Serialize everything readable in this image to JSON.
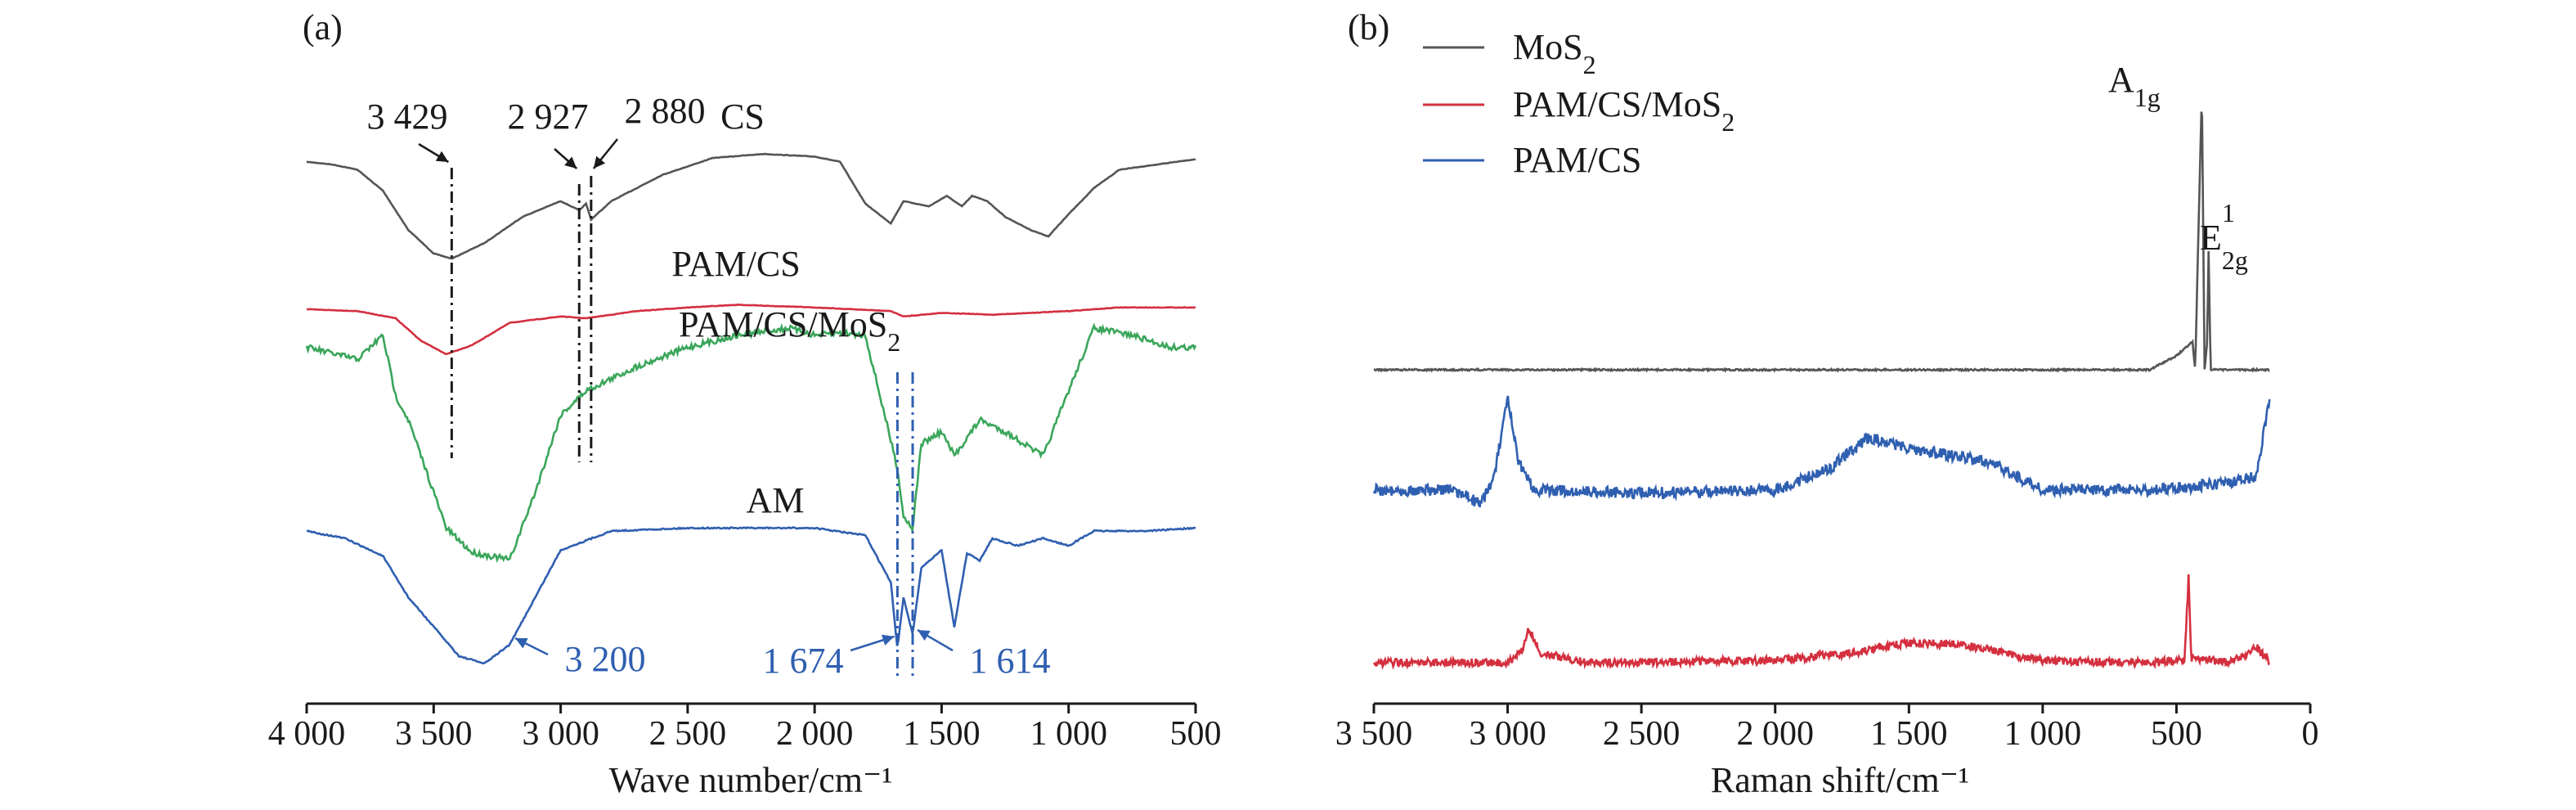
{
  "chart_data": [
    {
      "panel": "(a)",
      "type": "line",
      "xlabel": "Wave number/cm⁻¹",
      "xlim": [
        4000,
        500
      ],
      "xticks": [
        "4 000",
        "3 500",
        "3 000",
        "2 500",
        "2 000",
        "1 500",
        "1 000",
        "500"
      ],
      "xtick_values": [
        4000,
        3500,
        3000,
        2500,
        2000,
        1500,
        1000,
        500
      ],
      "series": [
        {
          "name": "CS",
          "label": "CS",
          "color": "#555555",
          "offset": 1.0,
          "points": [
            [
              4000,
              0.92
            ],
            [
              3900,
              0.9
            ],
            [
              3800,
              0.86
            ],
            [
              3700,
              0.7
            ],
            [
              3600,
              0.4
            ],
            [
              3500,
              0.22
            ],
            [
              3429,
              0.18
            ],
            [
              3300,
              0.3
            ],
            [
              3150,
              0.5
            ],
            [
              3000,
              0.62
            ],
            [
              2927,
              0.55
            ],
            [
              2900,
              0.6
            ],
            [
              2880,
              0.48
            ],
            [
              2800,
              0.62
            ],
            [
              2600,
              0.82
            ],
            [
              2400,
              0.95
            ],
            [
              2200,
              0.98
            ],
            [
              2000,
              0.96
            ],
            [
              1900,
              0.92
            ],
            [
              1800,
              0.6
            ],
            [
              1700,
              0.45
            ],
            [
              1650,
              0.62
            ],
            [
              1600,
              0.6
            ],
            [
              1550,
              0.58
            ],
            [
              1480,
              0.66
            ],
            [
              1420,
              0.58
            ],
            [
              1380,
              0.66
            ],
            [
              1320,
              0.62
            ],
            [
              1250,
              0.5
            ],
            [
              1150,
              0.4
            ],
            [
              1080,
              0.35
            ],
            [
              1000,
              0.52
            ],
            [
              900,
              0.72
            ],
            [
              800,
              0.86
            ],
            [
              650,
              0.9
            ],
            [
              500,
              0.94
            ]
          ]
        },
        {
          "name": "PAM/CS",
          "label": "PAM/CS",
          "color": "#d4303f",
          "offset": 0.0,
          "points": [
            [
              4000,
              0.7
            ],
            [
              3800,
              0.68
            ],
            [
              3650,
              0.6
            ],
            [
              3550,
              0.35
            ],
            [
              3450,
              0.2
            ],
            [
              3350,
              0.3
            ],
            [
              3200,
              0.55
            ],
            [
              3000,
              0.62
            ],
            [
              2900,
              0.6
            ],
            [
              2850,
              0.62
            ],
            [
              2700,
              0.68
            ],
            [
              2500,
              0.72
            ],
            [
              2300,
              0.75
            ],
            [
              2000,
              0.72
            ],
            [
              1700,
              0.68
            ],
            [
              1650,
              0.62
            ],
            [
              1500,
              0.66
            ],
            [
              1300,
              0.64
            ],
            [
              1000,
              0.68
            ],
            [
              800,
              0.72
            ],
            [
              500,
              0.72
            ]
          ]
        },
        {
          "name": "PAM/CS/MoS₂",
          "label": "PAM/CS/MoS₂",
          "color": "#3aa65a",
          "offset": 0.0,
          "points": [
            [
              4000,
              0.9
            ],
            [
              3800,
              0.85
            ],
            [
              3700,
              0.95
            ],
            [
              3650,
              0.7
            ],
            [
              3600,
              0.6
            ],
            [
              3500,
              0.3
            ],
            [
              3450,
              0.15
            ],
            [
              3350,
              0.05
            ],
            [
              3200,
              0.02
            ],
            [
              3100,
              0.3
            ],
            [
              3000,
              0.62
            ],
            [
              2900,
              0.72
            ],
            [
              2700,
              0.82
            ],
            [
              2500,
              0.9
            ],
            [
              2300,
              0.95
            ],
            [
              2100,
              0.98
            ],
            [
              2000,
              0.95
            ],
            [
              1900,
              0.96
            ],
            [
              1800,
              0.95
            ],
            [
              1674,
              0.4
            ],
            [
              1650,
              0.2
            ],
            [
              1614,
              0.15
            ],
            [
              1580,
              0.5
            ],
            [
              1500,
              0.55
            ],
            [
              1450,
              0.45
            ],
            [
              1350,
              0.6
            ],
            [
              1250,
              0.55
            ],
            [
              1100,
              0.45
            ],
            [
              1000,
              0.72
            ],
            [
              900,
              0.98
            ],
            [
              750,
              0.95
            ],
            [
              600,
              0.9
            ],
            [
              500,
              0.9
            ]
          ]
        },
        {
          "name": "AM",
          "label": "AM",
          "color": "#2f5fb0",
          "offset": 0.0,
          "points": [
            [
              4000,
              0.95
            ],
            [
              3850,
              0.9
            ],
            [
              3700,
              0.78
            ],
            [
              3600,
              0.5
            ],
            [
              3500,
              0.3
            ],
            [
              3400,
              0.1
            ],
            [
              3300,
              0.05
            ],
            [
              3200,
              0.18
            ],
            [
              3100,
              0.5
            ],
            [
              3000,
              0.82
            ],
            [
              2800,
              0.95
            ],
            [
              2500,
              0.97
            ],
            [
              2000,
              0.97
            ],
            [
              1800,
              0.92
            ],
            [
              1700,
              0.6
            ],
            [
              1674,
              0.15
            ],
            [
              1650,
              0.5
            ],
            [
              1614,
              0.25
            ],
            [
              1580,
              0.7
            ],
            [
              1500,
              0.82
            ],
            [
              1450,
              0.3
            ],
            [
              1400,
              0.8
            ],
            [
              1350,
              0.75
            ],
            [
              1300,
              0.9
            ],
            [
              1200,
              0.85
            ],
            [
              1100,
              0.9
            ],
            [
              1000,
              0.85
            ],
            [
              900,
              0.95
            ],
            [
              700,
              0.95
            ],
            [
              500,
              0.97
            ]
          ]
        }
      ],
      "curve_labels": [
        "CS",
        "PAM/CS",
        "PAM/CS/MoS",
        "AM"
      ],
      "curve_label_sub": [
        "",
        "",
        "2",
        ""
      ],
      "peak_annotations": [
        {
          "text": "3 429",
          "x": 3429,
          "style": "black"
        },
        {
          "text": "2 927",
          "x": 2927,
          "style": "black"
        },
        {
          "text": "2 880",
          "x": 2880,
          "style": "black"
        },
        {
          "text": "3 200",
          "x": 3200,
          "style": "blue"
        },
        {
          "text": "1 674",
          "x": 1674,
          "style": "blue"
        },
        {
          "text": "1 614",
          "x": 1614,
          "style": "blue"
        }
      ]
    },
    {
      "panel": "(b)",
      "type": "line",
      "xlabel": "Raman shift/cm⁻¹",
      "xlim": [
        3500,
        0
      ],
      "xticks": [
        "3 500",
        "3 000",
        "2 500",
        "2 000",
        "1 500",
        "1 000",
        "500",
        "0"
      ],
      "xtick_values": [
        3500,
        3000,
        2500,
        2000,
        1500,
        1000,
        500,
        0
      ],
      "legend": [
        {
          "label": "MoS",
          "sub": "2",
          "color": "#555555"
        },
        {
          "label": "PAM/CS/MoS",
          "sub": "2",
          "color": "#d4303f"
        },
        {
          "label": "PAM/CS",
          "sub": "",
          "color": "#2f5fb0"
        }
      ],
      "series": [
        {
          "name": "MoS₂",
          "color": "#555555",
          "points": [
            [
              3500,
              0
            ],
            [
              3000,
              0
            ],
            [
              2500,
              0
            ],
            [
              2000,
              0
            ],
            [
              1500,
              0
            ],
            [
              1000,
              0
            ],
            [
              600,
              0
            ],
            [
              500,
              0.05
            ],
            [
              440,
              0.1
            ],
            [
              430,
              0.0
            ],
            [
              405,
              1.0
            ],
            [
              395,
              0.0
            ],
            [
              385,
              0.1
            ],
            [
              380,
              0.42
            ],
            [
              372,
              0.0
            ],
            [
              300,
              0
            ],
            [
              150,
              0
            ]
          ]
        },
        {
          "name": "PAM/CS",
          "color": "#2f5fb0",
          "points": [
            [
              3500,
              0.3
            ],
            [
              3200,
              0.3
            ],
            [
              3100,
              0.2
            ],
            [
              3050,
              0.4
            ],
            [
              3000,
              0.95
            ],
            [
              2960,
              0.5
            ],
            [
              2900,
              0.3
            ],
            [
              2500,
              0.28
            ],
            [
              2000,
              0.3
            ],
            [
              1800,
              0.45
            ],
            [
              1650,
              0.68
            ],
            [
              1500,
              0.6
            ],
            [
              1350,
              0.55
            ],
            [
              1200,
              0.5
            ],
            [
              1000,
              0.3
            ],
            [
              600,
              0.3
            ],
            [
              300,
              0.35
            ],
            [
              200,
              0.4
            ],
            [
              150,
              1.0
            ]
          ]
        },
        {
          "name": "PAM/CS/MoS₂",
          "color": "#d4303f",
          "points": [
            [
              3500,
              0.1
            ],
            [
              3000,
              0.1
            ],
            [
              2950,
              0.2
            ],
            [
              2920,
              0.45
            ],
            [
              2880,
              0.2
            ],
            [
              2700,
              0.1
            ],
            [
              2000,
              0.12
            ],
            [
              1700,
              0.2
            ],
            [
              1500,
              0.3
            ],
            [
              1300,
              0.28
            ],
            [
              1000,
              0.12
            ],
            [
              600,
              0.1
            ],
            [
              470,
              0.12
            ],
            [
              455,
              0.95
            ],
            [
              445,
              0.15
            ],
            [
              300,
              0.1
            ],
            [
              200,
              0.25
            ],
            [
              150,
              0.1
            ]
          ]
        }
      ],
      "peak_labels": [
        {
          "main": "A",
          "sub": "1g",
          "sup": ""
        },
        {
          "main": "E",
          "sub": "2g",
          "sup": "1"
        }
      ]
    }
  ]
}
